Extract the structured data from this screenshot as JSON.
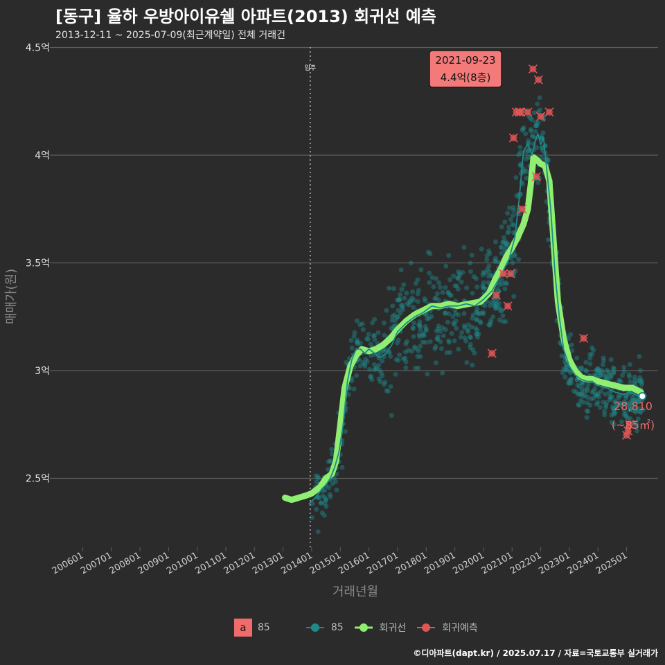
{
  "header": {
    "title": "[동구] 율하 우방아이유쉘 아파트(2013) 회귀선 예측",
    "subtitle": "2013-12-11 ~ 2025-07-09(최근계약일) 전체 거래건"
  },
  "caption": "©디아파트(dapt.kr) / 2025.07.17 / 자료=국토교통부 실거래가",
  "annotations": {
    "peak_date": "2021-09-23",
    "peak_value": "4.4억(8층)",
    "last_value": "28,810",
    "last_area": "(~85㎡)",
    "movein_label": "입주"
  },
  "legend": {
    "key_letter": "a",
    "key_label": "85",
    "series_85": "85",
    "regression": "회귀선",
    "prediction": "회귀예측"
  },
  "colors": {
    "background": "#2b2b2c",
    "grid": "#5e5e5e",
    "scatter": "#1f8a8a",
    "regression": "#90ee70",
    "prediction": "#e05555",
    "annotation_box": "#f47a7a",
    "last_label": "#f06a6a"
  },
  "chart_data": {
    "type": "line",
    "title": "[동구] 율하 우방아이유쉘 아파트(2013) 회귀선 예측",
    "xlabel": "거래년월",
    "ylabel": "매매가(원)",
    "x_range": [
      2005.0,
      2026.1
    ],
    "ylim": [
      2.2,
      4.5
    ],
    "x_ticks": [
      {
        "label": "200601",
        "x": 2006.0
      },
      {
        "label": "200701",
        "x": 2007.0
      },
      {
        "label": "200801",
        "x": 2008.0
      },
      {
        "label": "200901",
        "x": 2009.0
      },
      {
        "label": "201001",
        "x": 2010.0
      },
      {
        "label": "201101",
        "x": 2011.0
      },
      {
        "label": "201201",
        "x": 2012.0
      },
      {
        "label": "201301",
        "x": 2013.0
      },
      {
        "label": "201401",
        "x": 2014.0
      },
      {
        "label": "201501",
        "x": 2015.0
      },
      {
        "label": "201601",
        "x": 2016.0
      },
      {
        "label": "201701",
        "x": 2017.0
      },
      {
        "label": "201801",
        "x": 2018.0
      },
      {
        "label": "201901",
        "x": 2019.0
      },
      {
        "label": "202001",
        "x": 2020.0
      },
      {
        "label": "202101",
        "x": 2021.0
      },
      {
        "label": "202201",
        "x": 2022.0
      },
      {
        "label": "202301",
        "x": 2023.0
      },
      {
        "label": "202401",
        "x": 2024.0
      },
      {
        "label": "202501",
        "x": 2025.0
      }
    ],
    "y_ticks": [
      {
        "label": "2.5억",
        "y": 2.5
      },
      {
        "label": "3억",
        "y": 3.0
      },
      {
        "label": "3.5억",
        "y": 3.5
      },
      {
        "label": "4억",
        "y": 4.0
      },
      {
        "label": "4.5억",
        "y": 4.5
      }
    ],
    "movein_x": 2013.95,
    "series": [
      {
        "name": "회귀선",
        "x": [
          2013.07,
          2013.3,
          2013.55,
          2013.8,
          2014.0,
          2014.3,
          2014.5,
          2014.7,
          2014.85,
          2015.0,
          2015.15,
          2015.35,
          2015.55,
          2015.75,
          2016.0,
          2016.25,
          2016.5,
          2016.75,
          2017.0,
          2017.3,
          2017.6,
          2017.9,
          2018.2,
          2018.5,
          2018.8,
          2019.1,
          2019.5,
          2019.9,
          2020.2,
          2020.4,
          2020.6,
          2020.8,
          2021.0,
          2021.2,
          2021.4,
          2021.55,
          2021.65,
          2021.75,
          2021.85,
          2022.0,
          2022.15,
          2022.3,
          2022.45,
          2022.6,
          2022.8,
          2023.0,
          2023.2,
          2023.4,
          2023.6,
          2023.8,
          2024.0,
          2024.3,
          2024.6,
          2024.9,
          2025.2,
          2025.5
        ],
        "y": [
          2.41,
          2.4,
          2.41,
          2.42,
          2.43,
          2.46,
          2.5,
          2.52,
          2.58,
          2.75,
          2.92,
          3.02,
          3.07,
          3.1,
          3.09,
          3.1,
          3.12,
          3.15,
          3.19,
          3.23,
          3.26,
          3.28,
          3.3,
          3.3,
          3.31,
          3.3,
          3.31,
          3.32,
          3.36,
          3.42,
          3.47,
          3.53,
          3.57,
          3.62,
          3.68,
          3.75,
          3.86,
          3.99,
          3.98,
          3.96,
          3.95,
          3.88,
          3.6,
          3.32,
          3.15,
          3.05,
          3.0,
          2.97,
          2.96,
          2.96,
          2.95,
          2.94,
          2.93,
          2.92,
          2.92,
          2.9
        ]
      },
      {
        "name": "85",
        "x": [
          2013.9,
          2014.05,
          2014.2,
          2014.35,
          2014.5,
          2014.65,
          2014.8,
          2014.95,
          2015.1,
          2015.25,
          2015.4,
          2015.55,
          2015.7,
          2015.85,
          2016.0,
          2016.2,
          2016.4,
          2016.6,
          2016.8,
          2017.0,
          2017.3,
          2017.6,
          2017.9,
          2018.2,
          2018.5,
          2018.8,
          2019.1,
          2019.4,
          2019.7,
          2020.0,
          2020.3,
          2020.6,
          2020.9,
          2021.1,
          2021.25,
          2021.4,
          2021.55,
          2021.7,
          2021.8,
          2021.9,
          2022.0,
          2022.1,
          2022.2,
          2022.35,
          2022.5,
          2022.65,
          2022.8,
          2023.0,
          2023.2,
          2023.4,
          2023.6,
          2023.8,
          2024.0,
          2024.3,
          2024.6,
          2024.9,
          2025.1,
          2025.3,
          2025.45
        ],
        "y": [
          2.38,
          2.4,
          2.42,
          2.45,
          2.47,
          2.5,
          2.55,
          2.62,
          2.75,
          2.95,
          3.05,
          3.1,
          3.1,
          3.08,
          3.1,
          3.08,
          3.06,
          3.08,
          3.12,
          3.18,
          3.22,
          3.25,
          3.27,
          3.3,
          3.29,
          3.3,
          3.3,
          3.31,
          3.3,
          3.33,
          3.37,
          3.44,
          3.52,
          3.62,
          3.8,
          4.02,
          4.05,
          4.0,
          4.06,
          4.1,
          4.05,
          4.08,
          3.95,
          3.75,
          3.45,
          3.25,
          3.1,
          3.02,
          2.98,
          2.96,
          2.95,
          2.95,
          2.93,
          2.92,
          2.9,
          2.89,
          2.9,
          2.89,
          2.88
        ]
      }
    ],
    "predictions": {
      "name": "회귀예측",
      "x": [
        2020.3,
        2020.45,
        2020.7,
        2020.85,
        2020.95,
        2021.05,
        2021.15,
        2021.25,
        2021.3,
        2021.35,
        2021.55,
        2021.73,
        2021.85,
        2021.92,
        2022.3,
        2022.0,
        2023.5,
        2025.0,
        2025.1,
        2025.05
      ],
      "y": [
        3.08,
        3.35,
        3.45,
        3.3,
        3.45,
        4.08,
        4.2,
        4.2,
        4.2,
        3.75,
        4.2,
        4.4,
        3.9,
        4.35,
        4.2,
        4.18,
        3.15,
        2.7,
        2.75,
        2.72
      ]
    },
    "peak_point": {
      "x": 2021.73,
      "y": 4.4
    },
    "last_point": {
      "x": 2025.55,
      "y": 2.881
    }
  }
}
